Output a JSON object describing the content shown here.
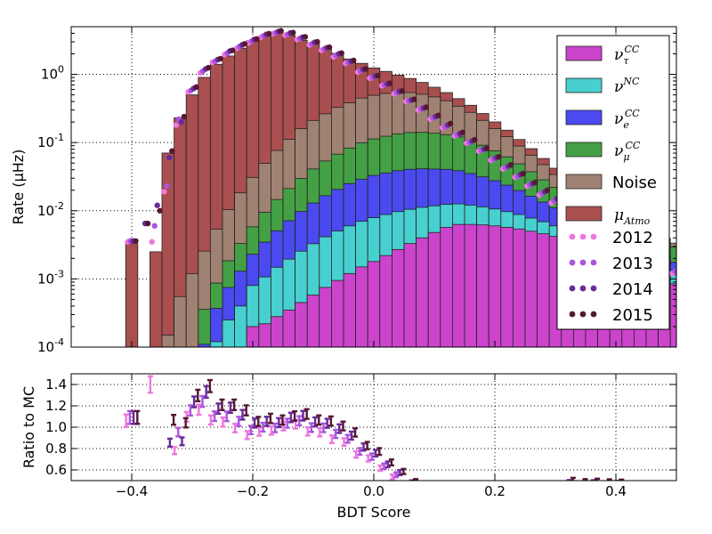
{
  "chart_data": {
    "type": "bar",
    "top_panel": {
      "ylabel": "Rate (μHz)",
      "yscale": "log",
      "ylim": [
        0.0001,
        5
      ],
      "ytick_labels": [
        "10^-4",
        "10^-3",
        "10^-2",
        "10^-1",
        "10^0"
      ],
      "grid": true,
      "legend_position": "top-right",
      "bin_edges_start": -0.41,
      "bin_width": 0.02,
      "stack_series": [
        {
          "name": "μ_Atmo",
          "label_main": "μ",
          "label_sub": "Atmo",
          "label_sup": "",
          "color": "#a94f4f",
          "values": [
            0.0033,
            0,
            0.0025,
            0.07,
            0.23,
            0.5,
            0.9,
            1.4,
            1.85,
            2.4,
            3.1,
            3.6,
            4.0,
            3.6,
            3.0,
            2.6,
            2.1,
            1.7,
            1.3,
            1.0,
            0.75,
            0.58,
            0.43,
            0.33,
            0.25,
            0.18,
            0.13,
            0.1,
            0.075,
            0.055,
            0.04,
            0.03,
            0.022,
            0.016,
            0.011,
            0.008,
            0,
            0,
            0,
            0,
            0,
            0,
            0,
            0,
            0,
            0,
            0,
            0,
            0,
            0
          ]
        },
        {
          "name": "Noise",
          "label_main": "Noise",
          "label_sub": "",
          "label_sup": "",
          "color": "#a08272",
          "values": [
            0,
            0,
            0,
            0.00015,
            0.00055,
            0.0011,
            0.0022,
            0.0045,
            0.0085,
            0.015,
            0.025,
            0.04,
            0.062,
            0.09,
            0.13,
            0.17,
            0.21,
            0.26,
            0.3,
            0.35,
            0.38,
            0.4,
            0.41,
            0.4,
            0.37,
            0.33,
            0.28,
            0.22,
            0.17,
            0.12,
            0.085,
            0.06,
            0.04,
            0.028,
            0.019,
            0.012,
            0.008,
            0.006,
            0.004,
            0.003,
            0.002,
            0.0015,
            0.001,
            0.0008,
            0.0006,
            0.0004,
            0,
            0,
            0,
            0
          ]
        },
        {
          "name": "ν_μ^CC",
          "label_main": "ν",
          "label_sub": "μ",
          "label_sup": "CC",
          "color": "#44a044",
          "values": [
            0,
            0,
            0,
            0,
            0,
            0.0001,
            0.00025,
            0.0005,
            0.0011,
            0.002,
            0.0035,
            0.006,
            0.0095,
            0.014,
            0.02,
            0.028,
            0.037,
            0.047,
            0.058,
            0.07,
            0.08,
            0.088,
            0.095,
            0.1,
            0.1,
            0.096,
            0.09,
            0.082,
            0.072,
            0.06,
            0.048,
            0.038,
            0.029,
            0.021,
            0.015,
            0.011,
            0.008,
            0.006,
            0.0045,
            0.0035,
            0.0028,
            0.0022,
            0.0018,
            0.0015,
            0.0013,
            0.0012,
            0.0012,
            0.0012,
            0.0012,
            0.0012
          ]
        },
        {
          "name": "ν_e^CC",
          "label_main": "ν",
          "label_sub": "e",
          "label_sup": "CC",
          "color": "#4a4af0",
          "values": [
            0,
            0,
            0,
            0,
            0,
            0,
            0.00011,
            0.00025,
            0.0005,
            0.0009,
            0.0015,
            0.0024,
            0.0036,
            0.0052,
            0.0072,
            0.0097,
            0.0125,
            0.0155,
            0.019,
            0.022,
            0.025,
            0.027,
            0.029,
            0.03,
            0.03,
            0.029,
            0.028,
            0.026,
            0.023,
            0.02,
            0.017,
            0.014,
            0.011,
            0.0085,
            0.0065,
            0.005,
            0.0038,
            0.003,
            0.0024,
            0.0019,
            0.0015,
            0.0012,
            0.001,
            0.0008,
            0.0007,
            0.0006,
            0.0005,
            0.0005,
            0.0005,
            0.0005
          ]
        },
        {
          "name": "ν^NC",
          "label_main": "ν",
          "label_sub": "",
          "label_sup": "NC",
          "color": "#48d0d0",
          "values": [
            0,
            0,
            0,
            0,
            0,
            0,
            0,
            0.00012,
            0.00025,
            0.0004,
            0.0006,
            0.00085,
            0.0012,
            0.0016,
            0.0021,
            0.0027,
            0.0034,
            0.0041,
            0.0048,
            0.0055,
            0.0061,
            0.0066,
            0.007,
            0.0072,
            0.0072,
            0.007,
            0.0067,
            0.0063,
            0.0058,
            0.0052,
            0.0046,
            0.004,
            0.0034,
            0.0028,
            0.0023,
            0.0018,
            0.0014,
            0.0011,
            0.0009,
            0.0007,
            0.0006,
            0.0005,
            0.00045,
            0.0004,
            0.00035,
            0.0003,
            0.0003,
            0.0003,
            0.0003,
            0.0003
          ]
        },
        {
          "name": "ν_τ^CC",
          "label_main": "ν",
          "label_sub": "τ",
          "label_sup": "CC",
          "color": "#cc44cc",
          "values": [
            0,
            0,
            0,
            0,
            0,
            0,
            0,
            0,
            0,
            0,
            0.0002,
            0.00022,
            0.00028,
            0.00035,
            0.00045,
            0.00058,
            0.00075,
            0.00095,
            0.0012,
            0.0015,
            0.0018,
            0.0022,
            0.0027,
            0.0033,
            0.004,
            0.0048,
            0.0057,
            0.0063,
            0.0063,
            0.0062,
            0.006,
            0.0057,
            0.0054,
            0.005,
            0.0046,
            0.0042,
            0.0037,
            0.0033,
            0.0028,
            0.0024,
            0.002,
            0.0017,
            0.0014,
            0.0012,
            0.001,
            0.00085,
            0.0007,
            0.0006,
            0.0005,
            0.0004
          ]
        }
      ],
      "data_series": [
        {
          "name": "2012",
          "color": "#ee77dd",
          "values": [
            0.0035,
            0,
            0.0035,
            0.019,
            0.18,
            0.55,
            1.05,
            1.5,
            1.95,
            2.4,
            2.9,
            3.5,
            3.95,
            3.75,
            3.25,
            2.7,
            2.25,
            1.8,
            1.45,
            1.08,
            0.88,
            0.68,
            0.52,
            0.4,
            0.3,
            0.22,
            0.165,
            0.125,
            0.098,
            0.075,
            0.055,
            0.041,
            0.031,
            0.023,
            0.017,
            0.013,
            0.01,
            0.008,
            0.006,
            0.0048,
            0.0037,
            0.0028,
            0.0022,
            0.0018,
            0.0015,
            0.0012,
            0.001,
            0.0009,
            0.0008,
            0.0007
          ]
        },
        {
          "name": "2013",
          "color": "#aa55dd",
          "values": [
            0.0036,
            0,
            0.006,
            0.023,
            0.22,
            0.58,
            1.12,
            1.55,
            2.05,
            2.55,
            3.05,
            3.65,
            4.05,
            3.85,
            3.35,
            2.8,
            2.35,
            1.9,
            1.5,
            1.12,
            0.9,
            0.7,
            0.54,
            0.41,
            0.31,
            0.23,
            0.17,
            0.13,
            0.1,
            0.077,
            0.057,
            0.043,
            0.032,
            0.024,
            0.018,
            0.014,
            0.011,
            0.0085,
            0.0065,
            0.005,
            0.0039,
            0.003,
            0.0024,
            0.0019,
            0.0016,
            0.0013,
            0.0011,
            0.0009,
            0.0008,
            0.0007
          ]
        },
        {
          "name": "2014",
          "color": "#6a2a9a",
          "values": [
            0.0036,
            0.0065,
            0.012,
            0.06,
            0.2,
            0.62,
            1.2,
            1.65,
            2.2,
            2.7,
            3.25,
            3.85,
            4.25,
            4.05,
            3.5,
            2.95,
            2.45,
            2.0,
            1.55,
            1.18,
            0.94,
            0.72,
            0.56,
            0.42,
            0.32,
            0.24,
            0.18,
            0.135,
            0.105,
            0.08,
            0.06,
            0.045,
            0.034,
            0.025,
            0.019,
            0.015,
            0.012,
            0.009,
            0.007,
            0.0054,
            0.0042,
            0.0032,
            0.0025,
            0.002,
            0.0016,
            0.0013,
            0.0011,
            0.001,
            0.0009,
            0.0008
          ]
        },
        {
          "name": "2015",
          "color": "#551833",
          "values": [
            0.0036,
            0.0065,
            0.01,
            0.075,
            0.24,
            0.65,
            1.25,
            1.7,
            2.25,
            2.8,
            3.3,
            3.95,
            4.35,
            4.1,
            3.55,
            3.0,
            2.5,
            2.05,
            1.6,
            1.2,
            0.96,
            0.74,
            0.57,
            0.43,
            0.33,
            0.25,
            0.19,
            0.14,
            0.11,
            0.082,
            0.062,
            0.047,
            0.035,
            0.026,
            0.02,
            0.0155,
            0.0125,
            0.0095,
            0.0072,
            0.0056,
            0.0043,
            0.0033,
            0.0026,
            0.0021,
            0.0017,
            0.0014,
            0.0012,
            0.001,
            0.0009,
            0.0008
          ]
        }
      ]
    },
    "bottom_panel": {
      "ylabel": "Ratio to MC",
      "xlabel": "BDT Score",
      "ylim": [
        0.5,
        1.5
      ],
      "yticks": [
        0.6,
        0.8,
        1.0,
        1.2,
        1.4
      ],
      "ytick_labels": [
        "0.6",
        "0.8",
        "1.0",
        "1.2",
        "1.4"
      ],
      "grid": true
    },
    "xlim": [
      -0.5,
      0.5
    ],
    "xticks": [
      -0.4,
      -0.2,
      0.0,
      0.2,
      0.4
    ],
    "xtick_labels": [
      "−0.4",
      "−0.2",
      "0.0",
      "0.2",
      "0.4"
    ]
  }
}
